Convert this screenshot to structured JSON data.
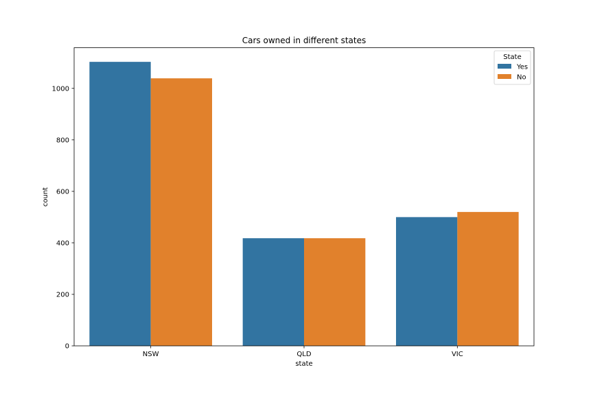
{
  "chart_data": {
    "type": "bar",
    "title": "Cars owned in different states",
    "xlabel": "state",
    "ylabel": "count",
    "categories": [
      "NSW",
      "QLD",
      "VIC"
    ],
    "series": [
      {
        "name": "Yes",
        "values": [
          1103,
          418,
          500
        ],
        "color": "#3274a1"
      },
      {
        "name": "No",
        "values": [
          1039,
          418,
          520
        ],
        "color": "#e1812c"
      }
    ],
    "ylim": [
      0,
      1158
    ],
    "yticks": [
      0,
      200,
      400,
      600,
      800,
      1000
    ],
    "legend": {
      "title": "State",
      "placement": "top-right"
    },
    "grid": false
  }
}
